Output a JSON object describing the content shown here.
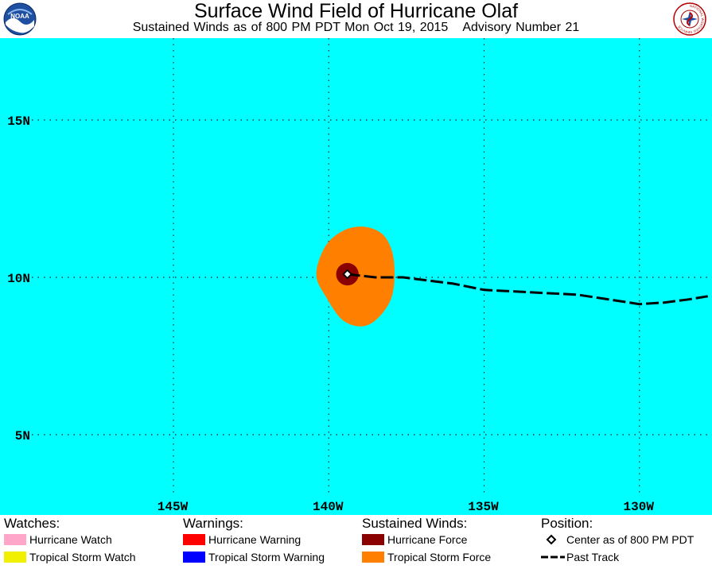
{
  "header": {
    "title": "Surface Wind Field of Hurricane Olaf",
    "subtitle_left": "Sustained Winds as of 800 PM PDT Mon Oct 19, 2015",
    "subtitle_right": "Advisory Number 21",
    "left_logo": {
      "icon": "noaa-logo-icon",
      "text": "NOAA"
    },
    "right_logo": {
      "icon": "nws-logo-icon",
      "text": "NATIONAL WEATHER SERVICE"
    }
  },
  "map": {
    "ocean_color": "#00ffff",
    "grid_color": "#202020",
    "label_color": "#000000",
    "lat_labels": [
      {
        "text": "15N",
        "lat": 15
      },
      {
        "text": "10N",
        "lat": 10
      },
      {
        "text": "5N",
        "lat": 5
      }
    ],
    "lon_labels": [
      {
        "text": "145W",
        "lon": -145
      },
      {
        "text": "140W",
        "lon": -140
      },
      {
        "text": "135W",
        "lon": -135
      },
      {
        "text": "130W",
        "lon": -130
      }
    ],
    "storm_center": {
      "lat": 10.1,
      "lon": -139.4
    },
    "past_track": [
      [
        -139.4,
        10.1
      ],
      [
        -138.5,
        10.0
      ],
      [
        -137.6,
        10.0
      ],
      [
        -136.8,
        9.9
      ],
      [
        -136.0,
        9.8
      ],
      [
        -135.0,
        9.6
      ],
      [
        -134.0,
        9.55
      ],
      [
        -133.0,
        9.5
      ],
      [
        -132.0,
        9.45
      ],
      [
        -131.0,
        9.3
      ],
      [
        -130.0,
        9.15
      ],
      [
        -129.2,
        9.2
      ],
      [
        -128.4,
        9.3
      ],
      [
        -127.8,
        9.4
      ]
    ],
    "tropical_storm_force_field": [
      [
        -138.8,
        11.6
      ],
      [
        -138.2,
        11.3
      ],
      [
        -137.9,
        10.5
      ],
      [
        -138.0,
        9.3
      ],
      [
        -138.7,
        8.5
      ],
      [
        -139.5,
        8.6
      ],
      [
        -140.1,
        9.4
      ],
      [
        -140.4,
        10.1
      ],
      [
        -140.1,
        11.0
      ],
      [
        -139.5,
        11.5
      ]
    ],
    "hurricane_force_radius_deg": 0.36
  },
  "legend": {
    "watches": {
      "heading": "Watches:",
      "items": [
        {
          "label": "Hurricane Watch",
          "color": "#ffa6c9"
        },
        {
          "label": "Tropical Storm Watch",
          "color": "#f0f000"
        }
      ]
    },
    "warnings": {
      "heading": "Warnings:",
      "items": [
        {
          "label": "Hurricane Warning",
          "color": "#ff0000"
        },
        {
          "label": "Tropical Storm Warning",
          "color": "#0000ff"
        }
      ]
    },
    "winds": {
      "heading": "Sustained Winds:",
      "items": [
        {
          "label": "Hurricane Force",
          "color": "#8b0000"
        },
        {
          "label": "Tropical Storm Force",
          "color": "#ff8000"
        }
      ]
    },
    "position": {
      "heading": "Position:",
      "items": [
        {
          "label": "Center as of 800 PM PDT",
          "icon": "diamond-icon"
        },
        {
          "label": "Past Track",
          "icon": "dashed-line-icon"
        }
      ]
    }
  }
}
